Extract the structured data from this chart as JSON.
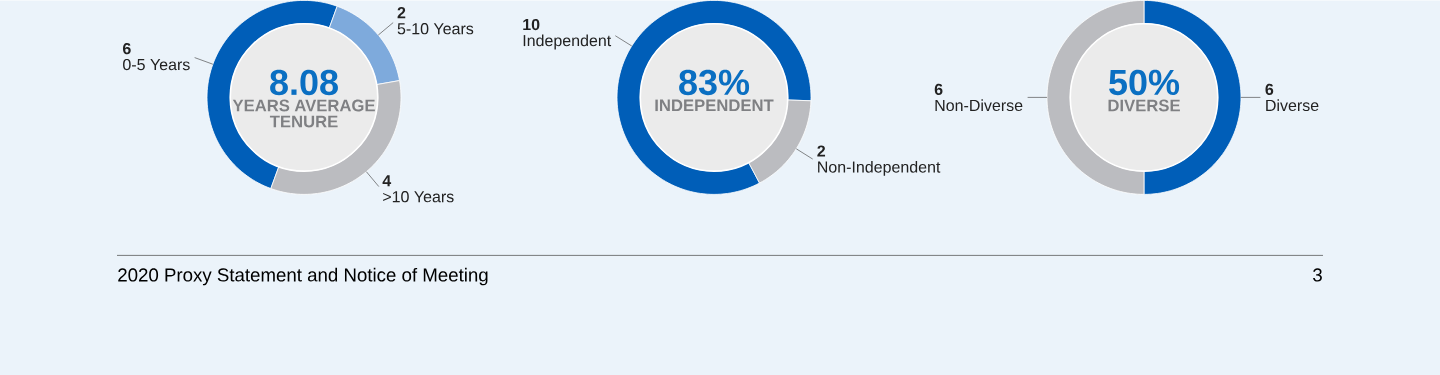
{
  "chart_data": [
    {
      "type": "donut",
      "categories": [
        "0-5 Years",
        "5-10 Years",
        ">10 Years"
      ],
      "values": [
        6,
        2,
        4
      ],
      "colors": [
        "#005eb8",
        "#7eaadc",
        "#bbbcc0"
      ],
      "data_labels": true,
      "annotations": [
        "8.08",
        "YEARS AVERAGE TENURE",
        "2020 Proxy Statement and Notice of Meeting",
        "3"
      ]
    },
    {
      "type": "donut",
      "categories": [
        "Independent",
        "Non-Independent"
      ],
      "values": [
        10,
        2
      ],
      "colors": [
        "#005eb8",
        "#bbbcc0"
      ],
      "data_labels": true,
      "annotations": [
        "83%",
        "INDEPENDENT"
      ]
    },
    {
      "type": "donut",
      "categories": [
        "Diverse",
        "Non-Diverse"
      ],
      "values": [
        6,
        6
      ],
      "colors": [
        "#005eb8",
        "#bbbcc0"
      ],
      "data_labels": true,
      "annotations": [
        "50%",
        "DIVERSE"
      ]
    }
  ]
}
